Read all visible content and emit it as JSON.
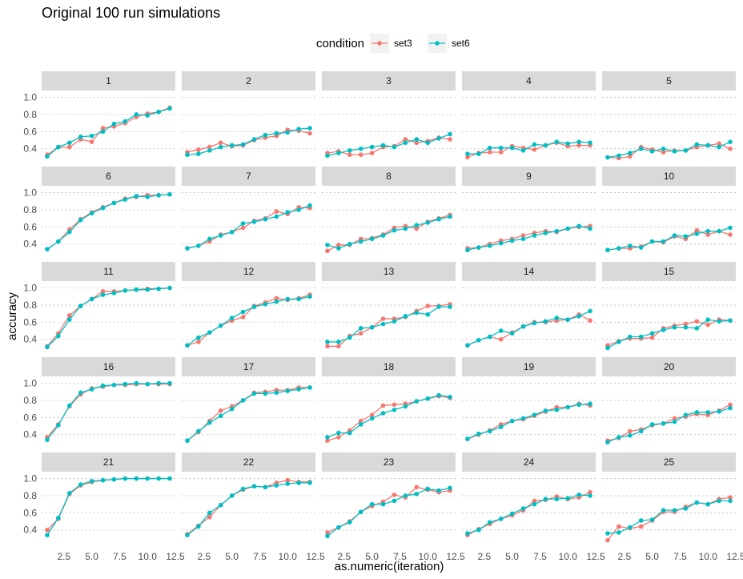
{
  "chart_data": {
    "type": "line",
    "title": "Original 100 run simulations",
    "xlabel": "as.numeric(iteration)",
    "ylabel": "accuracy",
    "legend": {
      "title": "condition",
      "position": "top",
      "entries": [
        {
          "name": "set3",
          "color": "#F8766D"
        },
        {
          "name": "set6",
          "color": "#00BFC4"
        }
      ]
    },
    "layout": {
      "rows": 5,
      "cols": 5
    },
    "xlim": [
      0.5,
      12.5
    ],
    "ylim": [
      0.22,
      1.08
    ],
    "x_ticks": [
      2.5,
      5.0,
      7.5,
      10.0,
      12.5
    ],
    "x_tick_labels": [
      "2.5",
      "5.0",
      "7.5",
      "10.0",
      "12.5"
    ],
    "y_ticks": [
      0.4,
      0.6,
      0.8,
      1.0
    ],
    "y_tick_labels": [
      "0.4",
      "0.6",
      "0.8",
      "1.0"
    ],
    "grid": true,
    "x": [
      1,
      2,
      3,
      4,
      5,
      6,
      7,
      8,
      9,
      10,
      11,
      12
    ],
    "panels": [
      {
        "label": "1",
        "series": [
          {
            "name": "set3",
            "values": [
              0.33,
              0.42,
              0.42,
              0.51,
              0.48,
              0.64,
              0.66,
              0.7,
              0.77,
              0.81,
              0.83,
              0.88
            ]
          },
          {
            "name": "set6",
            "values": [
              0.31,
              0.42,
              0.47,
              0.54,
              0.55,
              0.6,
              0.69,
              0.72,
              0.8,
              0.79,
              0.83,
              0.87
            ]
          }
        ]
      },
      {
        "label": "2",
        "series": [
          {
            "name": "set3",
            "values": [
              0.36,
              0.39,
              0.42,
              0.47,
              0.43,
              0.44,
              0.5,
              0.53,
              0.55,
              0.62,
              0.61,
              0.58
            ]
          },
          {
            "name": "set6",
            "values": [
              0.33,
              0.34,
              0.38,
              0.42,
              0.44,
              0.45,
              0.51,
              0.56,
              0.58,
              0.59,
              0.63,
              0.64
            ]
          }
        ]
      },
      {
        "label": "3",
        "series": [
          {
            "name": "set3",
            "values": [
              0.35,
              0.37,
              0.33,
              0.33,
              0.35,
              0.42,
              0.43,
              0.51,
              0.47,
              0.49,
              0.53,
              0.51
            ]
          },
          {
            "name": "set6",
            "values": [
              0.32,
              0.35,
              0.38,
              0.4,
              0.42,
              0.44,
              0.42,
              0.47,
              0.51,
              0.47,
              0.52,
              0.57
            ]
          }
        ]
      },
      {
        "label": "4",
        "series": [
          {
            "name": "set3",
            "values": [
              0.3,
              0.35,
              0.36,
              0.36,
              0.43,
              0.41,
              0.39,
              0.44,
              0.47,
              0.43,
              0.44,
              0.44
            ]
          },
          {
            "name": "set6",
            "values": [
              0.34,
              0.34,
              0.41,
              0.41,
              0.41,
              0.38,
              0.45,
              0.44,
              0.48,
              0.46,
              0.48,
              0.47
            ]
          }
        ]
      },
      {
        "label": "5",
        "series": [
          {
            "name": "set3",
            "values": [
              0.3,
              0.29,
              0.31,
              0.42,
              0.39,
              0.36,
              0.38,
              0.38,
              0.42,
              0.44,
              0.46,
              0.4
            ]
          },
          {
            "name": "set6",
            "values": [
              0.3,
              0.32,
              0.35,
              0.4,
              0.37,
              0.4,
              0.37,
              0.38,
              0.45,
              0.44,
              0.42,
              0.48
            ]
          }
        ]
      },
      {
        "label": "6",
        "series": [
          {
            "name": "set3",
            "values": [
              0.34,
              0.43,
              0.57,
              0.69,
              0.77,
              0.83,
              0.88,
              0.93,
              0.95,
              0.97,
              0.97,
              0.98
            ]
          },
          {
            "name": "set6",
            "values": [
              0.34,
              0.43,
              0.54,
              0.68,
              0.76,
              0.82,
              0.88,
              0.92,
              0.96,
              0.95,
              0.97,
              0.98
            ]
          }
        ]
      },
      {
        "label": "7",
        "series": [
          {
            "name": "set3",
            "values": [
              0.35,
              0.38,
              0.43,
              0.51,
              0.54,
              0.59,
              0.67,
              0.7,
              0.78,
              0.75,
              0.83,
              0.82
            ]
          },
          {
            "name": "set6",
            "values": [
              0.35,
              0.38,
              0.46,
              0.5,
              0.54,
              0.64,
              0.66,
              0.69,
              0.72,
              0.77,
              0.8,
              0.85
            ]
          }
        ]
      },
      {
        "label": "8",
        "series": [
          {
            "name": "set3",
            "values": [
              0.32,
              0.39,
              0.39,
              0.46,
              0.47,
              0.51,
              0.59,
              0.61,
              0.58,
              0.66,
              0.7,
              0.74
            ]
          },
          {
            "name": "set6",
            "values": [
              0.39,
              0.35,
              0.4,
              0.43,
              0.46,
              0.5,
              0.56,
              0.58,
              0.62,
              0.65,
              0.69,
              0.72
            ]
          }
        ]
      },
      {
        "label": "9",
        "series": [
          {
            "name": "set3",
            "values": [
              0.35,
              0.36,
              0.4,
              0.44,
              0.46,
              0.5,
              0.53,
              0.55,
              0.54,
              0.58,
              0.6,
              0.61
            ]
          },
          {
            "name": "set6",
            "values": [
              0.33,
              0.36,
              0.38,
              0.41,
              0.44,
              0.46,
              0.5,
              0.53,
              0.55,
              0.58,
              0.61,
              0.58
            ]
          }
        ]
      },
      {
        "label": "10",
        "series": [
          {
            "name": "set3",
            "values": [
              0.33,
              0.35,
              0.35,
              0.37,
              0.43,
              0.42,
              0.49,
              0.46,
              0.56,
              0.51,
              0.55,
              0.51
            ]
          },
          {
            "name": "set6",
            "values": [
              0.33,
              0.35,
              0.38,
              0.36,
              0.43,
              0.43,
              0.5,
              0.49,
              0.52,
              0.55,
              0.55,
              0.59
            ]
          }
        ]
      },
      {
        "label": "11",
        "series": [
          {
            "name": "set3",
            "values": [
              0.32,
              0.47,
              0.68,
              0.79,
              0.87,
              0.96,
              0.96,
              0.97,
              0.98,
              0.99,
              0.99,
              1.0
            ]
          },
          {
            "name": "set6",
            "values": [
              0.31,
              0.44,
              0.63,
              0.79,
              0.87,
              0.92,
              0.94,
              0.97,
              0.98,
              0.98,
              0.99,
              1.0
            ]
          }
        ]
      },
      {
        "label": "12",
        "series": [
          {
            "name": "set3",
            "values": [
              0.33,
              0.37,
              0.48,
              0.56,
              0.62,
              0.66,
              0.79,
              0.83,
              0.88,
              0.86,
              0.88,
              0.92
            ]
          },
          {
            "name": "set6",
            "values": [
              0.33,
              0.42,
              0.48,
              0.56,
              0.65,
              0.72,
              0.78,
              0.81,
              0.84,
              0.87,
              0.87,
              0.9
            ]
          }
        ]
      },
      {
        "label": "13",
        "series": [
          {
            "name": "set3",
            "values": [
              0.32,
              0.32,
              0.44,
              0.47,
              0.54,
              0.64,
              0.64,
              0.66,
              0.73,
              0.79,
              0.79,
              0.81
            ]
          },
          {
            "name": "set6",
            "values": [
              0.37,
              0.37,
              0.42,
              0.53,
              0.54,
              0.58,
              0.61,
              0.67,
              0.71,
              0.69,
              0.78,
              0.78
            ]
          }
        ]
      },
      {
        "label": "14",
        "series": [
          {
            "name": "set3",
            "values": [
              0.33,
              0.39,
              0.43,
              0.4,
              0.48,
              0.55,
              0.6,
              0.6,
              0.62,
              0.63,
              0.69,
              0.62
            ]
          },
          {
            "name": "set6",
            "values": [
              0.33,
              0.39,
              0.43,
              0.5,
              0.47,
              0.55,
              0.59,
              0.61,
              0.65,
              0.63,
              0.67,
              0.73
            ]
          }
        ]
      },
      {
        "label": "15",
        "series": [
          {
            "name": "set3",
            "values": [
              0.33,
              0.38,
              0.41,
              0.41,
              0.42,
              0.53,
              0.56,
              0.58,
              0.61,
              0.57,
              0.63,
              0.62
            ]
          },
          {
            "name": "set6",
            "values": [
              0.3,
              0.37,
              0.43,
              0.43,
              0.47,
              0.51,
              0.54,
              0.54,
              0.53,
              0.63,
              0.61,
              0.62
            ]
          }
        ]
      },
      {
        "label": "16",
        "series": [
          {
            "name": "set3",
            "values": [
              0.37,
              0.52,
              0.73,
              0.87,
              0.94,
              0.96,
              0.98,
              0.98,
              0.99,
              0.99,
              0.99,
              0.99
            ]
          },
          {
            "name": "set6",
            "values": [
              0.34,
              0.51,
              0.74,
              0.89,
              0.93,
              0.97,
              0.98,
              0.99,
              1.0,
              0.99,
              1.0,
              1.0
            ]
          }
        ]
      },
      {
        "label": "17",
        "series": [
          {
            "name": "set3",
            "values": [
              0.33,
              0.43,
              0.56,
              0.68,
              0.73,
              0.8,
              0.89,
              0.9,
              0.92,
              0.92,
              0.95,
              0.95
            ]
          },
          {
            "name": "set6",
            "values": [
              0.33,
              0.44,
              0.54,
              0.62,
              0.7,
              0.8,
              0.88,
              0.88,
              0.89,
              0.91,
              0.93,
              0.95
            ]
          }
        ]
      },
      {
        "label": "18",
        "series": [
          {
            "name": "set3",
            "values": [
              0.33,
              0.37,
              0.45,
              0.56,
              0.63,
              0.74,
              0.75,
              0.76,
              0.79,
              0.82,
              0.85,
              0.83
            ]
          },
          {
            "name": "set6",
            "values": [
              0.37,
              0.42,
              0.42,
              0.52,
              0.59,
              0.65,
              0.69,
              0.73,
              0.79,
              0.82,
              0.86,
              0.84
            ]
          }
        ]
      },
      {
        "label": "19",
        "series": [
          {
            "name": "set3",
            "values": [
              0.35,
              0.4,
              0.45,
              0.52,
              0.56,
              0.58,
              0.62,
              0.67,
              0.72,
              0.72,
              0.76,
              0.74
            ]
          },
          {
            "name": "set6",
            "values": [
              0.35,
              0.41,
              0.44,
              0.49,
              0.56,
              0.59,
              0.63,
              0.68,
              0.69,
              0.72,
              0.75,
              0.76
            ]
          }
        ]
      },
      {
        "label": "20",
        "series": [
          {
            "name": "set3",
            "values": [
              0.33,
              0.36,
              0.44,
              0.46,
              0.51,
              0.53,
              0.59,
              0.61,
              0.64,
              0.63,
              0.68,
              0.75
            ]
          },
          {
            "name": "set6",
            "values": [
              0.31,
              0.37,
              0.39,
              0.44,
              0.52,
              0.53,
              0.55,
              0.63,
              0.66,
              0.66,
              0.67,
              0.71
            ]
          }
        ]
      },
      {
        "label": "21",
        "series": [
          {
            "name": "set3",
            "values": [
              0.4,
              0.53,
              0.82,
              0.92,
              0.96,
              0.98,
              0.99,
              1.0,
              1.0,
              1.0,
              1.0,
              1.0
            ]
          },
          {
            "name": "set6",
            "values": [
              0.34,
              0.54,
              0.83,
              0.93,
              0.97,
              0.98,
              0.99,
              1.0,
              1.0,
              1.0,
              1.0,
              1.0
            ]
          }
        ]
      },
      {
        "label": "22",
        "series": [
          {
            "name": "set3",
            "values": [
              0.35,
              0.45,
              0.55,
              0.69,
              0.8,
              0.87,
              0.91,
              0.9,
              0.95,
              0.98,
              0.96,
              0.96
            ]
          },
          {
            "name": "set6",
            "values": [
              0.34,
              0.44,
              0.6,
              0.69,
              0.8,
              0.88,
              0.91,
              0.9,
              0.92,
              0.94,
              0.95,
              0.95
            ]
          }
        ]
      },
      {
        "label": "23",
        "series": [
          {
            "name": "set3",
            "values": [
              0.37,
              0.43,
              0.5,
              0.61,
              0.68,
              0.73,
              0.81,
              0.78,
              0.9,
              0.87,
              0.84,
              0.86
            ]
          },
          {
            "name": "set6",
            "values": [
              0.33,
              0.43,
              0.49,
              0.61,
              0.7,
              0.7,
              0.74,
              0.8,
              0.82,
              0.88,
              0.86,
              0.89
            ]
          }
        ]
      },
      {
        "label": "24",
        "series": [
          {
            "name": "set3",
            "values": [
              0.34,
              0.41,
              0.47,
              0.53,
              0.57,
              0.63,
              0.74,
              0.75,
              0.79,
              0.76,
              0.78,
              0.84
            ]
          },
          {
            "name": "set6",
            "values": [
              0.36,
              0.4,
              0.49,
              0.53,
              0.59,
              0.65,
              0.7,
              0.76,
              0.76,
              0.77,
              0.81,
              0.8
            ]
          }
        ]
      },
      {
        "label": "25",
        "series": [
          {
            "name": "set3",
            "values": [
              0.28,
              0.44,
              0.42,
              0.44,
              0.51,
              0.61,
              0.61,
              0.67,
              0.72,
              0.7,
              0.76,
              0.78
            ]
          },
          {
            "name": "set6",
            "values": [
              0.36,
              0.37,
              0.43,
              0.51,
              0.52,
              0.63,
              0.63,
              0.65,
              0.72,
              0.7,
              0.74,
              0.74
            ]
          }
        ]
      }
    ]
  }
}
